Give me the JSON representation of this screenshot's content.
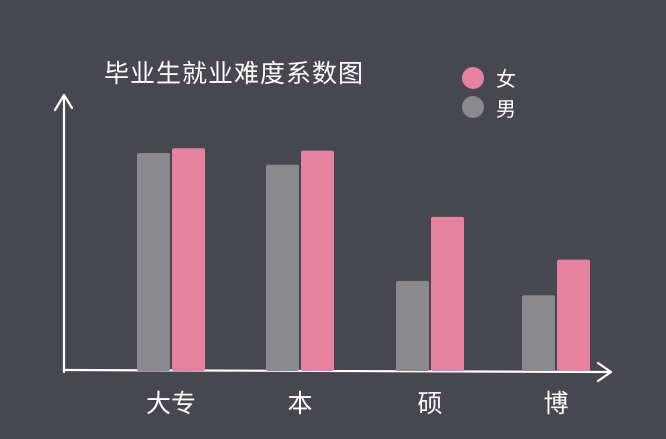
{
  "chart_data": {
    "type": "bar",
    "title": "毕业生就业难度系数图",
    "categories": [
      "大专",
      "本",
      "硕",
      "博"
    ],
    "series": [
      {
        "name": "男",
        "color": "#8a898e",
        "values": [
          0.92,
          0.87,
          0.38,
          0.32
        ]
      },
      {
        "name": "女",
        "color": "#e6829f",
        "values": [
          0.94,
          0.93,
          0.65,
          0.47
        ]
      }
    ],
    "ylim": [
      0,
      1
    ],
    "legend": "top-right",
    "grid": false,
    "xlabel": "",
    "ylabel": ""
  },
  "colors": {
    "background": "#47474f",
    "axis": "#ffffff"
  }
}
